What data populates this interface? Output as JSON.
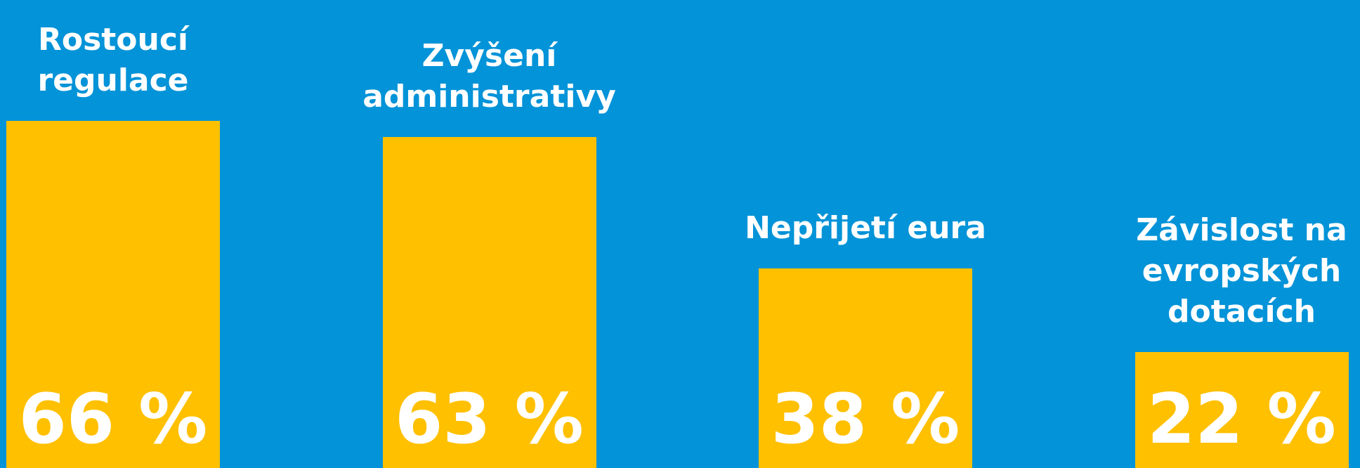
{
  "chart_data": {
    "type": "bar",
    "categories": [
      "Rostoucí regulace",
      "Zvýšení administrativy",
      "Nepřijetí eura",
      "Závislost na evropských dotacích"
    ],
    "values": [
      66,
      63,
      38,
      22
    ],
    "value_labels": [
      "66 %",
      "63 %",
      "38 %",
      "22 %"
    ],
    "color": "#ffc000",
    "background": "#0393d8"
  }
}
